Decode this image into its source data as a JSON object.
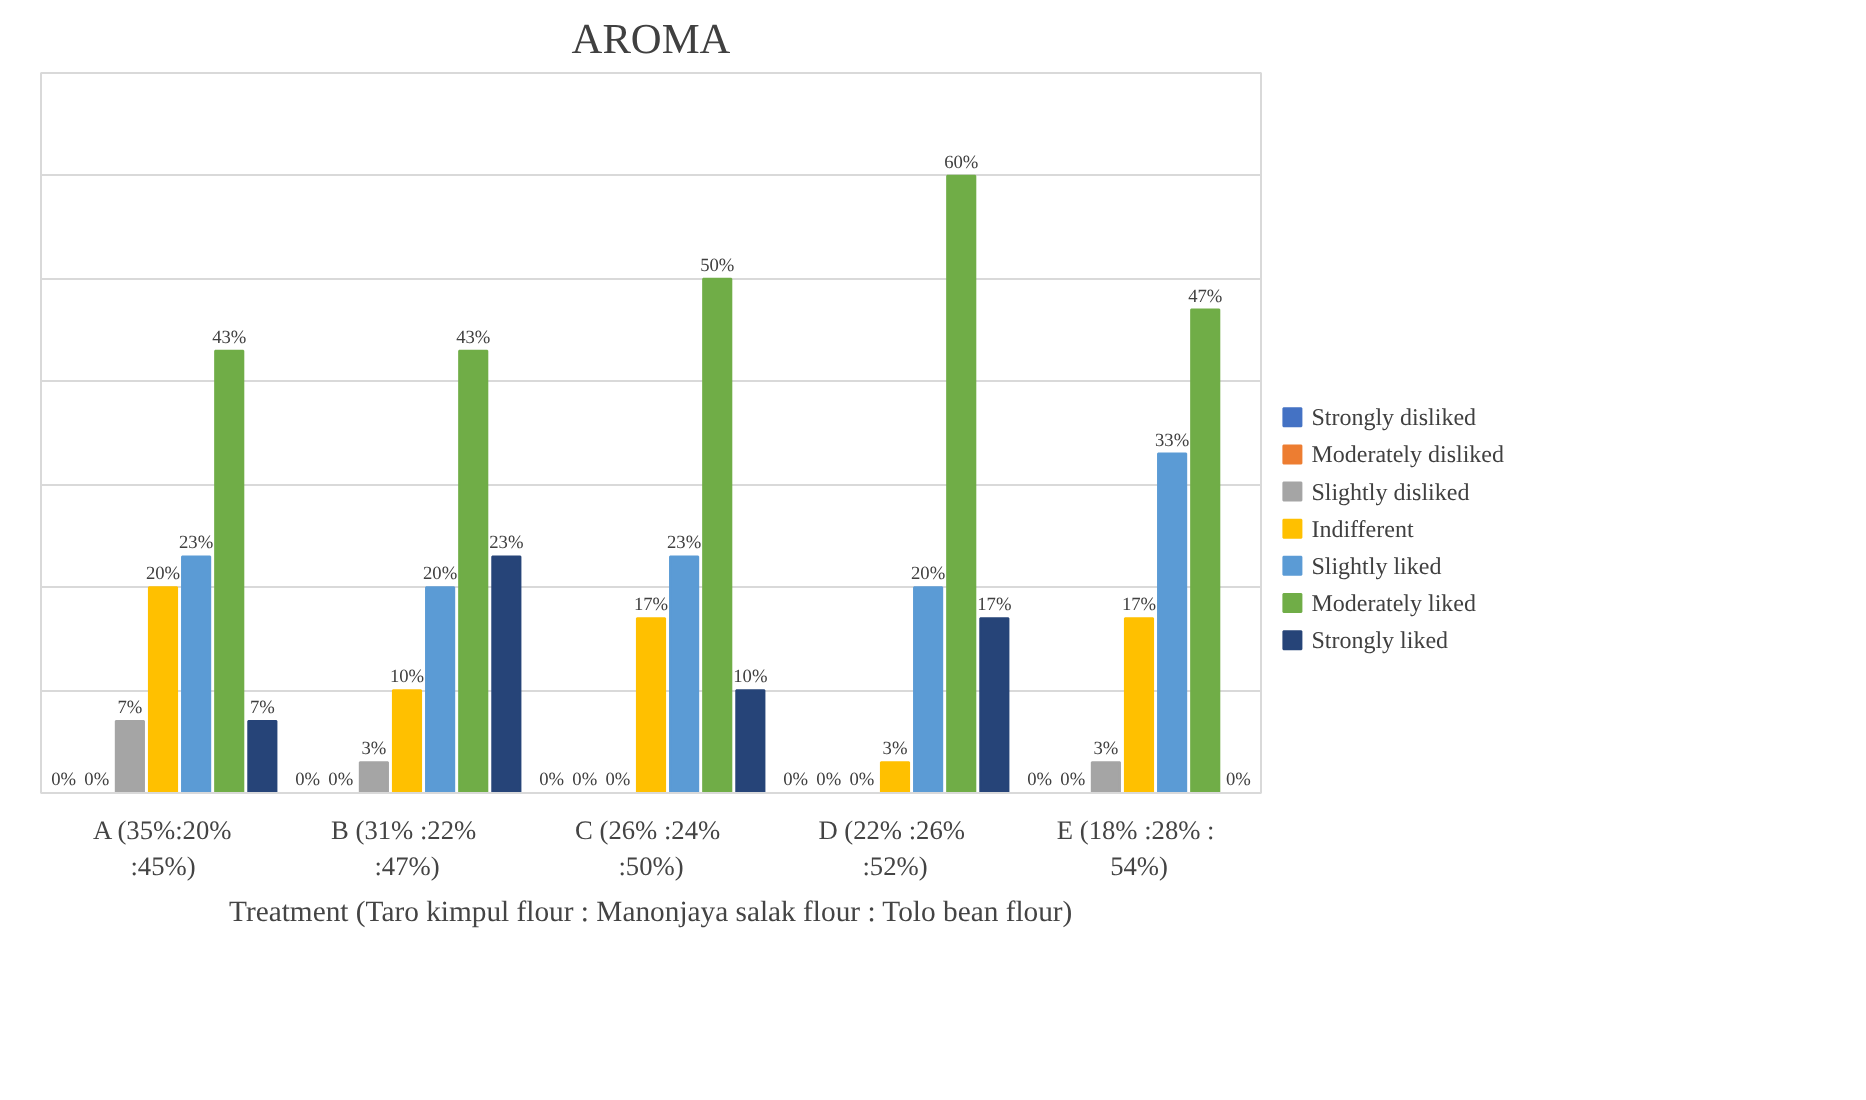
{
  "chart_data": {
    "type": "bar",
    "title": "AROMA",
    "xlabel": "Treatment (Taro kimpul flour : Manonjaya salak flour : Tolo bean flour)",
    "categories": [
      "A (35%:20%\n:45%)",
      "B  (31% :22%\n:47%)",
      "C  (26% :24%\n:50%)",
      "D  (22% :26%\n:52%)",
      "E  (18% :28% :\n54%)"
    ],
    "series": [
      {
        "name": "Strongly disliked",
        "color": "#4472c4",
        "values": [
          0,
          0,
          0,
          0,
          0
        ],
        "value_labels": [
          "0%",
          "0%",
          "0%",
          "0%",
          "0%"
        ]
      },
      {
        "name": "Moderately disliked",
        "color": "#ed7d31",
        "values": [
          0,
          0,
          0,
          0,
          0
        ],
        "value_labels": [
          "0%",
          "0%",
          "0%",
          "0%",
          "0%"
        ]
      },
      {
        "name": "Slightly disliked",
        "color": "#a5a5a5",
        "values": [
          7,
          3,
          0,
          0,
          3
        ],
        "value_labels": [
          "7%",
          "3%",
          "0%",
          "0%",
          "3%"
        ]
      },
      {
        "name": "Indifferent",
        "color": "#ffc000",
        "values": [
          20,
          10,
          17,
          3,
          17
        ],
        "value_labels": [
          "20%",
          "10%",
          "17%",
          "3%",
          "17%"
        ]
      },
      {
        "name": "Slightly liked",
        "color": "#5b9bd5",
        "values": [
          23,
          20,
          23,
          20,
          33
        ],
        "value_labels": [
          "23%",
          "20%",
          "23%",
          "20%",
          "33%"
        ]
      },
      {
        "name": "Moderately liked",
        "color": "#70ad47",
        "values": [
          43,
          43,
          50,
          60,
          47
        ],
        "value_labels": [
          "43%",
          "43%",
          "50%",
          "60%",
          "47%"
        ]
      },
      {
        "name": "Strongly liked",
        "color": "#264478",
        "values": [
          7,
          23,
          10,
          17,
          0
        ],
        "value_labels": [
          "7%",
          "23%",
          "10%",
          "17%",
          "0%"
        ]
      }
    ],
    "ylim": [
      0,
      70
    ],
    "yticks": [
      {
        "value": 0,
        "label": null
      },
      {
        "value": 10,
        "label": null
      },
      {
        "value": 20,
        "label": null
      },
      {
        "value": 30,
        "label": null
      },
      {
        "value": 40,
        "label": null
      },
      {
        "value": 50,
        "label": null
      },
      {
        "value": 60,
        "label": null
      },
      {
        "value": 70,
        "label": null
      }
    ],
    "grid": "y",
    "legend": "right",
    "tick_labels": "x"
  }
}
